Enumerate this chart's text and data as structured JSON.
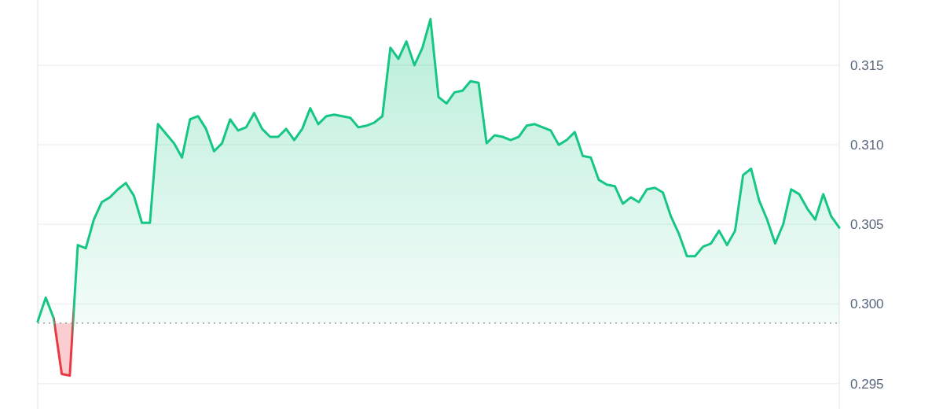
{
  "chart_data": {
    "type": "area",
    "categories": [
      null,
      null,
      null,
      null,
      null,
      null,
      null,
      null,
      null,
      null,
      null,
      null,
      null,
      null,
      null,
      null,
      null,
      null,
      null,
      null,
      null,
      null,
      null,
      null,
      null,
      null,
      null,
      null,
      null,
      null,
      null,
      null,
      null,
      null,
      null,
      null,
      null,
      null,
      null,
      null,
      null,
      null,
      null,
      null,
      null,
      null,
      null,
      null,
      null,
      null,
      null,
      null,
      null,
      null,
      null,
      null,
      null,
      null,
      null,
      null,
      null,
      null,
      null,
      null,
      null,
      null,
      null,
      null,
      null,
      null,
      null,
      null,
      null,
      null,
      null,
      null,
      null,
      null,
      null,
      null,
      null,
      null,
      null,
      null,
      null,
      null,
      null,
      null,
      null,
      null,
      null,
      null,
      null,
      null,
      null,
      null,
      null,
      null,
      null,
      null,
      null
    ],
    "series": [
      {
        "colors": [
          "#16c784",
          "#16c784",
          "#16c784",
          "#ea3943",
          "#ea3943",
          "#16c784",
          "#16c784",
          "#16c784",
          "#16c784",
          "#16c784",
          "#16c784",
          "#16c784",
          "#16c784",
          "#16c784",
          "#16c784",
          "#16c784",
          "#16c784",
          "#16c784",
          "#16c784",
          "#16c784",
          "#16c784",
          "#16c784",
          "#16c784",
          "#16c784",
          "#16c784",
          "#16c784",
          "#16c784",
          "#16c784",
          "#16c784",
          "#16c784",
          "#16c784",
          "#16c784",
          "#16c784",
          "#16c784",
          "#16c784",
          "#16c784",
          "#16c784",
          "#16c784",
          "#16c784",
          "#16c784",
          "#16c784",
          "#16c784",
          "#16c784",
          "#16c784",
          "#16c784",
          "#16c784",
          "#16c784",
          "#16c784",
          "#16c784",
          "#16c784",
          "#16c784",
          "#16c784",
          "#16c784",
          "#16c784",
          "#16c784",
          "#16c784",
          "#16c784",
          "#16c784",
          "#16c784",
          "#16c784",
          "#16c784",
          "#16c784",
          "#16c784",
          "#16c784",
          "#16c784",
          "#16c784",
          "#16c784",
          "#16c784",
          "#16c784",
          "#16c784",
          "#16c784",
          "#16c784",
          "#16c784",
          "#16c784",
          "#16c784",
          "#16c784",
          "#16c784",
          "#16c784",
          "#16c784",
          "#16c784",
          "#16c784",
          "#16c784",
          "#16c784",
          "#16c784",
          "#16c784",
          "#16c784",
          "#16c784",
          "#16c784",
          "#16c784",
          "#16c784",
          "#16c784",
          "#16c784",
          "#16c784",
          "#16c784",
          "#16c784",
          "#16c784",
          "#16c784",
          "#16c784",
          "#16c784",
          "#16c784",
          "#16c784"
        ],
        "values": [
          0.2989,
          0.3004,
          0.2991,
          0.2956,
          0.2955,
          0.3037,
          0.3035,
          0.3053,
          0.3064,
          0.3067,
          0.3072,
          0.3076,
          0.3068,
          0.3051,
          0.3051,
          0.3113,
          0.3107,
          0.3101,
          0.3092,
          0.3116,
          0.3118,
          0.311,
          0.3096,
          0.3101,
          0.3116,
          0.3109,
          0.3111,
          0.312,
          0.311,
          0.3105,
          0.3105,
          0.311,
          0.3103,
          0.311,
          0.3123,
          0.3113,
          0.3118,
          0.3119,
          0.3118,
          0.3117,
          0.3111,
          0.3112,
          0.3114,
          0.3118,
          0.3161,
          0.3154,
          0.3165,
          0.315,
          0.3161,
          0.3179,
          0.313,
          0.3126,
          0.3133,
          0.3134,
          0.314,
          0.3139,
          0.3101,
          0.3106,
          0.3105,
          0.3103,
          0.3105,
          0.3112,
          0.3113,
          0.3111,
          0.3109,
          0.31,
          0.3103,
          0.3108,
          0.3093,
          0.3092,
          0.3078,
          0.3075,
          0.3074,
          0.3063,
          0.3067,
          0.3064,
          0.3072,
          0.3073,
          0.307,
          0.3055,
          0.3044,
          0.303,
          0.303,
          0.3036,
          0.3038,
          0.3046,
          0.3037,
          0.3046,
          0.3081,
          0.3085,
          0.3065,
          0.3053,
          0.3038,
          0.305,
          0.3072,
          0.3069,
          0.306,
          0.3053,
          0.3069,
          0.3055,
          0.3048
        ]
      }
    ],
    "ylim": [
      0.2934,
      0.3191
    ],
    "yticks": [
      0.295,
      {
        "value": 0.3,
        "label": "0.300"
      },
      0.305,
      {
        "value": 0.31,
        "label": "0.310"
      },
      0.315
    ],
    "ref_lines": [
      {
        "axis": "y",
        "value": 0.2988,
        "color": "#999999",
        "line_style": "dotted"
      }
    ],
    "grid": "y"
  }
}
